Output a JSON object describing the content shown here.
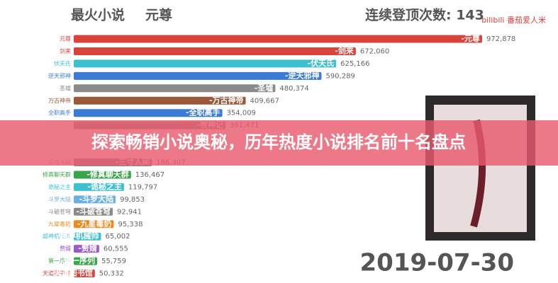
{
  "chart_data": {
    "type": "bar",
    "orientation": "horizontal",
    "title": "最火小说",
    "leader": "元尊",
    "counter": "连续登顶次数: 143",
    "date": "2019-07-30",
    "watermark": "bilibili 番茄爱人米",
    "categories": [
      "元尊",
      "剑来",
      "伏天氏",
      "逆天邪神",
      "圣墟",
      "万古神帝",
      "全职高手",
      null,
      null,
      null,
      "三寸人间",
      "修真聊天群",
      "诡秘之主",
      "斗罗大陆",
      "斗破苍穹",
      "九星毒奶",
      "超神机械师",
      "赘婿",
      "第一序列",
      "天道图书馆"
    ],
    "bar_labels": [
      "-元尊",
      "-剑来",
      "-伏天氏",
      "-逆天邪神",
      "-圣墟",
      "-万古神帝",
      "-全职高手",
      "-牧神记",
      null,
      null,
      "-三寸人间",
      "-修真聊天群",
      "-诡秘之主",
      "-斗罗大陆",
      "-斗破苍穹",
      "-九星毒奶",
      "-超神机械师",
      "-赘婿",
      "-第一序列",
      "-天道图书馆"
    ],
    "values": [
      972878,
      672060,
      625166,
      590289,
      480374,
      409667,
      354009,
      361471,
      null,
      null,
      186307,
      136467,
      119797,
      99853,
      92941,
      95338,
      65002,
      60555,
      55759,
      50332
    ],
    "value_labels": [
      "972,878",
      "672,060",
      "625,166",
      "590,289",
      "480,374",
      "409,667",
      "354,009",
      "361,471",
      null,
      null,
      "186,307",
      "136,467",
      "119,797",
      "99,853",
      "92,941",
      "95,338",
      "65,002",
      "60,555",
      "55,759",
      "50,332"
    ],
    "colors": [
      "#d9433a",
      "#d9433a",
      "#3ec0d0",
      "#3a7bd5",
      "#8a8a8a",
      "#9a5a3a",
      "#3a7bd5",
      "#8a8a8a",
      "#8a8a8a",
      "#8a8a8a",
      "#8a8a8a",
      "#3aa54a",
      "#3ec0d0",
      "#6ab0e0",
      "#8a8a8a",
      "#f08a20",
      "#3ec0d0",
      "#9a5ac8",
      "#3aa54a",
      "#d9433a"
    ],
    "xlim": [
      0,
      1000000
    ]
  },
  "banner": {
    "title": "探索畅销小说奥秘，历年热度小说排名前十名盘点"
  }
}
